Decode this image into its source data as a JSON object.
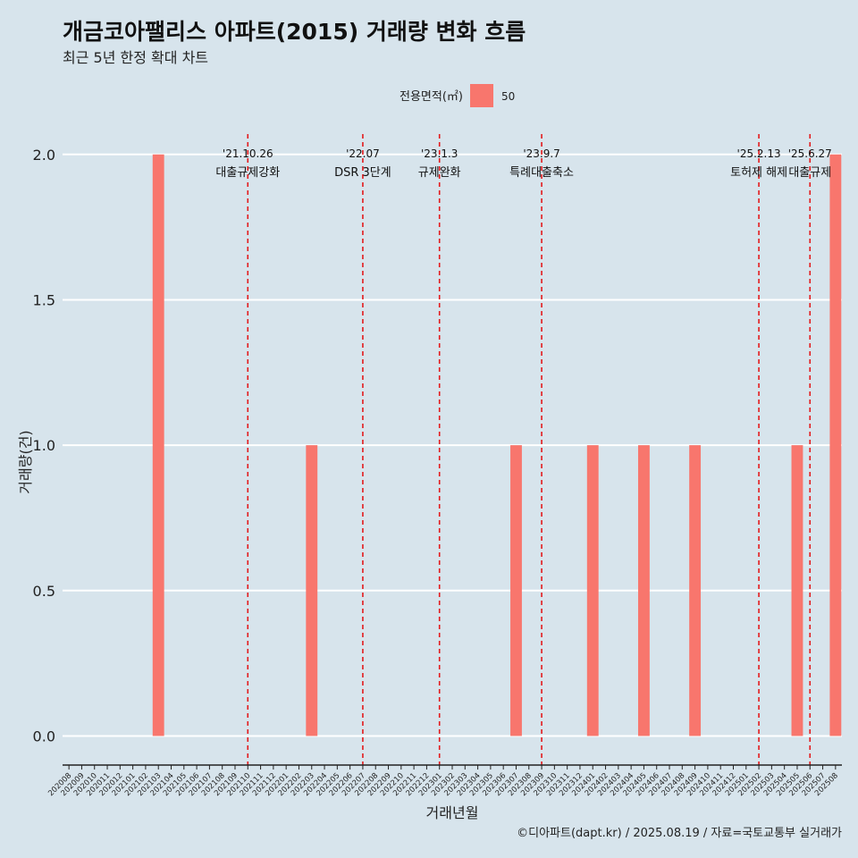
{
  "chart_data": {
    "type": "bar",
    "title": "개금코아팰리스 아파트(2015) 거래량 변화 흐름",
    "subtitle": "최근 5년 한정 확대 차트",
    "xlabel": "거래년월",
    "ylabel": "거래량(건)",
    "ylim": [
      -0.1,
      2.07
    ],
    "yticks": [
      "0.0",
      "0.5",
      "1.0",
      "1.5",
      "2.0"
    ],
    "ytick_values": [
      0,
      0.5,
      1.0,
      1.5,
      2.0
    ],
    "grid": true,
    "legend": {
      "title": "전용면적(㎡)",
      "position": "top",
      "items": [
        {
          "label": "50",
          "color": "#f8766d"
        }
      ]
    },
    "categories": [
      "202008",
      "202009",
      "202010",
      "202011",
      "202012",
      "202101",
      "202102",
      "202103",
      "202104",
      "202105",
      "202106",
      "202107",
      "202108",
      "202109",
      "202110",
      "202111",
      "202112",
      "202201",
      "202202",
      "202203",
      "202204",
      "202205",
      "202206",
      "202207",
      "202208",
      "202209",
      "202210",
      "202211",
      "202212",
      "202301",
      "202302",
      "202303",
      "202304",
      "202305",
      "202306",
      "202307",
      "202308",
      "202309",
      "202310",
      "202311",
      "202312",
      "202401",
      "202402",
      "202403",
      "202404",
      "202405",
      "202406",
      "202407",
      "202408",
      "202409",
      "202410",
      "202411",
      "202412",
      "202501",
      "202502",
      "202503",
      "202504",
      "202505",
      "202506",
      "202507",
      "202508"
    ],
    "series": [
      {
        "name": "50",
        "color": "#f8766d",
        "values": [
          0,
          0,
          0,
          0,
          0,
          0,
          0,
          2,
          0,
          0,
          0,
          0,
          0,
          0,
          0,
          0,
          0,
          0,
          0,
          1,
          0,
          0,
          0,
          0,
          0,
          0,
          0,
          0,
          0,
          0,
          0,
          0,
          0,
          0,
          0,
          1,
          0,
          0,
          0,
          0,
          0,
          1,
          0,
          0,
          0,
          1,
          0,
          0,
          0,
          1,
          0,
          0,
          0,
          0,
          0,
          0,
          0,
          1,
          0,
          0,
          2
        ]
      }
    ],
    "annotations": [
      {
        "at": "202110",
        "date": "'21.10.26",
        "label": "대출규제강화"
      },
      {
        "at": "202207",
        "date": "'22.07",
        "label": "DSR 3단계"
      },
      {
        "at": "202301",
        "date": "'23.1.3",
        "label": "규제완화"
      },
      {
        "at": "202309",
        "date": "'23.9.7",
        "label": "특례대출축소"
      },
      {
        "at": "202502",
        "date": "'25.2.13",
        "label": "토허제 해제"
      },
      {
        "at": "202506",
        "date": "'25.6.27",
        "label": "대출규제"
      }
    ],
    "annotation_color": "#e31a1c",
    "caption": "©디아파트(dapt.kr) / 2025.08.19 / 자료=국토교통부 실거래가"
  }
}
